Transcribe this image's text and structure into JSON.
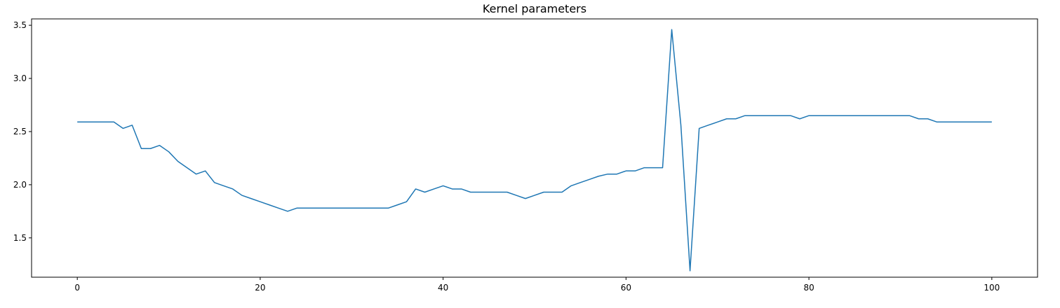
{
  "chart_data": {
    "type": "line",
    "title": "Kernel parameters",
    "xlabel": "",
    "ylabel": "",
    "xlim": [
      -5,
      105
    ],
    "ylim": [
      1.13,
      3.56
    ],
    "x_ticks": [
      0,
      20,
      40,
      60,
      80,
      100
    ],
    "y_ticks": [
      1.5,
      2.0,
      2.5,
      3.0,
      3.5
    ],
    "x_tick_labels": [
      "0",
      "20",
      "40",
      "60",
      "80",
      "100"
    ],
    "y_tick_labels": [
      "1.5",
      "2.0",
      "2.5",
      "3.0",
      "3.5"
    ],
    "grid": false,
    "series": [
      {
        "color": "#1f77b4",
        "x": [
          0,
          1,
          2,
          3,
          4,
          5,
          6,
          7,
          8,
          9,
          10,
          11,
          12,
          13,
          14,
          15,
          16,
          17,
          18,
          19,
          20,
          21,
          22,
          23,
          24,
          25,
          26,
          27,
          28,
          29,
          30,
          31,
          32,
          33,
          34,
          35,
          36,
          37,
          38,
          39,
          40,
          41,
          42,
          43,
          44,
          45,
          46,
          47,
          48,
          49,
          50,
          51,
          52,
          53,
          54,
          55,
          56,
          57,
          58,
          59,
          60,
          61,
          62,
          63,
          64,
          65,
          66,
          67,
          68,
          69,
          70,
          71,
          72,
          73,
          74,
          75,
          76,
          77,
          78,
          79,
          80,
          81,
          82,
          83,
          84,
          85,
          86,
          87,
          88,
          89,
          90,
          91,
          92,
          93,
          94,
          95,
          96,
          97,
          98,
          99,
          100
        ],
        "y": [
          2.59,
          2.59,
          2.59,
          2.59,
          2.59,
          2.53,
          2.56,
          2.34,
          2.34,
          2.37,
          2.31,
          2.22,
          2.16,
          2.1,
          2.13,
          2.02,
          1.99,
          1.96,
          1.9,
          1.87,
          1.84,
          1.81,
          1.78,
          1.75,
          1.78,
          1.78,
          1.78,
          1.78,
          1.78,
          1.78,
          1.78,
          1.78,
          1.78,
          1.78,
          1.78,
          1.81,
          1.84,
          1.96,
          1.93,
          1.96,
          1.99,
          1.96,
          1.96,
          1.93,
          1.93,
          1.93,
          1.93,
          1.93,
          1.9,
          1.87,
          1.9,
          1.93,
          1.93,
          1.93,
          1.99,
          2.02,
          2.05,
          2.08,
          2.1,
          2.1,
          2.13,
          2.13,
          2.16,
          2.16,
          2.16,
          3.46,
          2.56,
          1.19,
          2.53,
          2.56,
          2.59,
          2.62,
          2.62,
          2.65,
          2.65,
          2.65,
          2.65,
          2.65,
          2.65,
          2.62,
          2.65,
          2.65,
          2.65,
          2.65,
          2.65,
          2.65,
          2.65,
          2.65,
          2.65,
          2.65,
          2.65,
          2.65,
          2.62,
          2.62,
          2.59,
          2.59,
          2.59,
          2.59,
          2.59,
          2.59,
          2.59
        ]
      }
    ]
  }
}
